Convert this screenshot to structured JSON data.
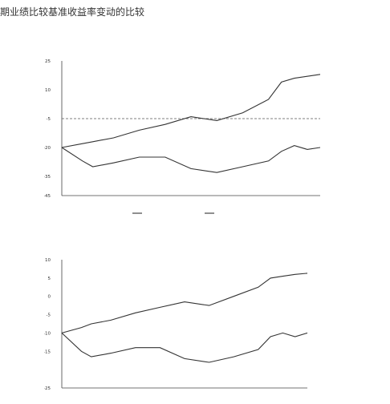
{
  "heading": "期业绩比较基准收益率变动的比较",
  "chart_data": [
    {
      "type": "line",
      "title": "",
      "subtitle": "",
      "xlabel": "",
      "ylabel": "",
      "ylim": [
        -45,
        25
      ],
      "y_ticks": [
        "25",
        "10",
        "-5",
        "-20",
        "-35",
        "-45"
      ],
      "y_tick_values": [
        25,
        10,
        -5,
        -20,
        -35,
        -45
      ],
      "x_tick_labels": [
        "",
        "",
        "",
        "",
        "",
        "",
        ""
      ],
      "grid": false,
      "reference_line": {
        "y": -5,
        "style": "dashed"
      },
      "legend": {
        "position": "bottom",
        "entries": [
          "",
          ""
        ]
      },
      "x": [
        0,
        0.08,
        0.12,
        0.2,
        0.3,
        0.4,
        0.5,
        0.6,
        0.7,
        0.8,
        0.85,
        0.9,
        0.95,
        1.0
      ],
      "series": [
        {
          "values": [
            -20,
            -18,
            -17,
            -15,
            -11,
            -8,
            -4,
            -6,
            -2,
            5,
            14,
            16,
            17,
            18
          ]
        },
        {
          "values": [
            -20,
            -27,
            -30,
            -28,
            -25,
            -25,
            -31,
            -33,
            -30,
            -27,
            -22,
            -19,
            -21,
            -20
          ]
        }
      ]
    },
    {
      "type": "line",
      "title": "",
      "subtitle": "",
      "xlabel": "",
      "ylabel": "",
      "ylim": [
        -25,
        10
      ],
      "y_ticks": [
        "10",
        "5",
        "0",
        "-5",
        "-10",
        "-15",
        "-25"
      ],
      "y_tick_values": [
        10,
        5,
        0,
        -5,
        -10,
        -15,
        -25
      ],
      "x_tick_labels": [
        "",
        "",
        "",
        "",
        "",
        "",
        ""
      ],
      "grid": false,
      "x": [
        0,
        0.08,
        0.12,
        0.2,
        0.3,
        0.4,
        0.5,
        0.6,
        0.7,
        0.8,
        0.85,
        0.9,
        0.95,
        1.0
      ],
      "series": [
        {
          "values": [
            -10,
            -8.5,
            -7.5,
            -6.5,
            -4.5,
            -3,
            -1.5,
            -2.5,
            0,
            2.5,
            5,
            5.5,
            6,
            6.3
          ]
        },
        {
          "values": [
            -10,
            -15,
            -16.5,
            -15.5,
            -14,
            -14,
            -17,
            -18,
            -16.5,
            -14.5,
            -11,
            -10,
            -11,
            -10
          ]
        }
      ]
    }
  ]
}
